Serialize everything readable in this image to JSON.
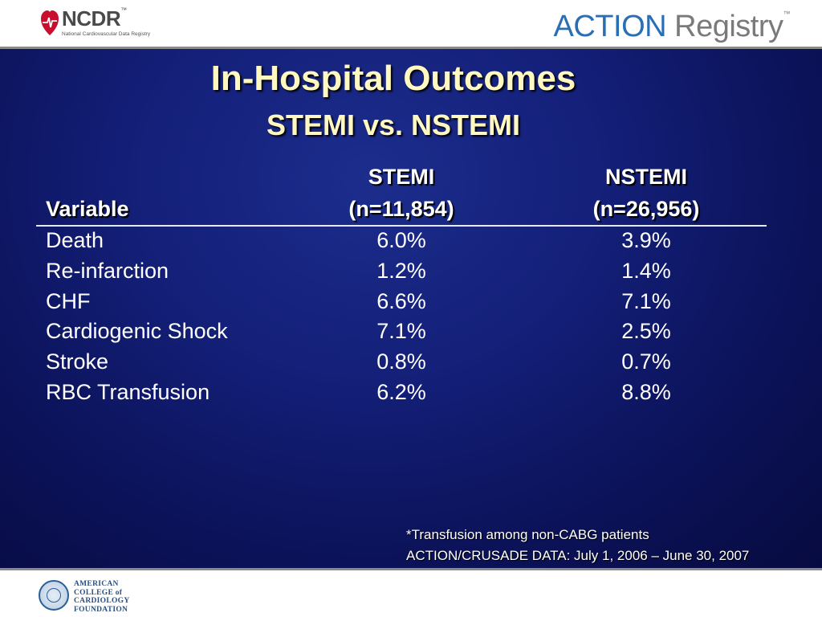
{
  "header": {
    "ncdr_logo_text": "NCDR",
    "ncdr_tm": "™",
    "ncdr_subtitle": "National Cardiovascular Data Registry",
    "action_word": "ACTION",
    "registry_word": " Registry",
    "action_tm": "™"
  },
  "slide": {
    "title": "In-Hospital Outcomes",
    "subtitle": "STEMI vs. NSTEMI",
    "table": {
      "headers": {
        "variable": "Variable",
        "stemi": "STEMI",
        "stemi_n": "(n=11,854)",
        "nstemi": "NSTEMI",
        "nstemi_n": "(n=26,956)"
      },
      "rows": [
        {
          "variable": "Death",
          "stemi": "6.0%",
          "nstemi": "3.9%"
        },
        {
          "variable": "Re-infarction",
          "stemi": "1.2%",
          "nstemi": "1.4%"
        },
        {
          "variable": "CHF",
          "stemi": "6.6%",
          "nstemi": "7.1%"
        },
        {
          "variable": "Cardiogenic Shock",
          "stemi": "7.1%",
          "nstemi": "2.5%"
        },
        {
          "variable": "Stroke",
          "stemi": "0.8%",
          "nstemi": "0.7%"
        },
        {
          "variable": "RBC Transfusion",
          "stemi": "6.2%",
          "nstemi": "8.8%"
        }
      ]
    },
    "footnote_line1": "*Transfusion among non-CABG patients",
    "footnote_line2": "ACTION/CRUSADE DATA: July 1, 2006 – June 30, 2007"
  },
  "footer": {
    "acc_line1": "AMERICAN",
    "acc_line2": "COLLEGE of",
    "acc_line3": "CARDIOLOGY",
    "acc_line4": "FOUNDATION"
  },
  "colors": {
    "title": "#fff8c0",
    "slide_bg": "#14207a",
    "action_blue": "#2a6fb3",
    "registry_gray": "#7a7a7a"
  }
}
